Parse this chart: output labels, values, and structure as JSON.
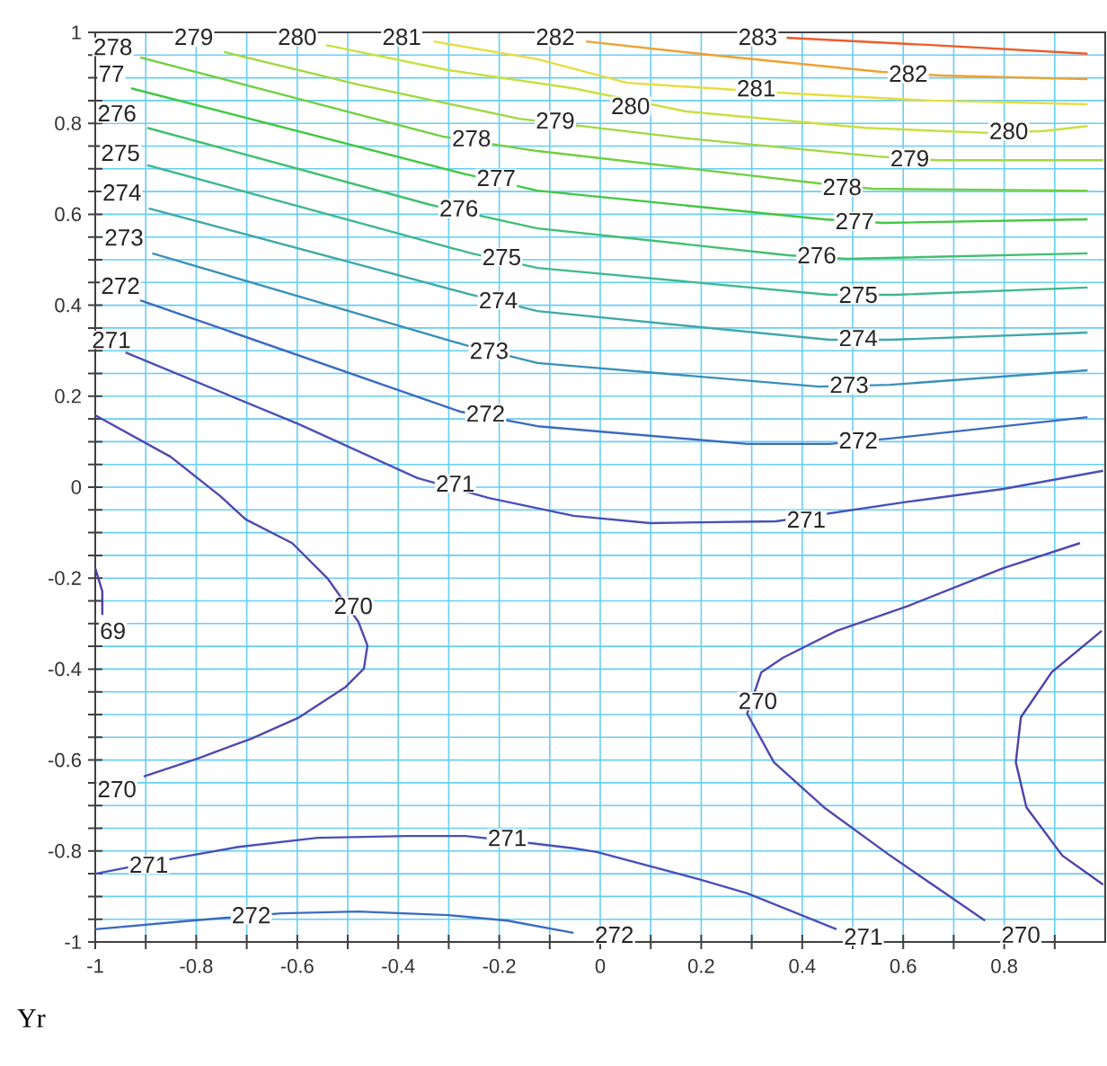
{
  "chart_data": {
    "type": "line",
    "xlabel": "Yr",
    "xlim": [
      -1,
      1
    ],
    "ylim": [
      -1,
      1
    ],
    "xticks": [
      -1,
      {
        "value": -0.9,
        "label": null
      },
      -0.8,
      {
        "value": -0.7,
        "label": null
      },
      -0.6,
      {
        "value": -0.5,
        "label": null
      },
      -0.4,
      {
        "value": -0.3,
        "label": null
      },
      -0.2,
      {
        "value": -0.1,
        "label": null
      },
      0,
      {
        "value": 0.1,
        "label": null
      },
      0.2,
      {
        "value": 0.3,
        "label": null
      },
      0.4,
      {
        "value": 0.5,
        "label": null
      },
      0.6,
      {
        "value": 0.7,
        "label": null
      },
      0.8,
      {
        "value": 0.9,
        "label": null
      }
    ],
    "yticks": [
      -1,
      {
        "value": -0.95,
        "label": null
      },
      {
        "value": -0.9,
        "label": null
      },
      {
        "value": -0.85,
        "label": null
      },
      -0.8,
      {
        "value": -0.75,
        "label": null
      },
      {
        "value": -0.7,
        "label": null
      },
      {
        "value": -0.65,
        "label": null
      },
      -0.6,
      {
        "value": -0.55,
        "label": null
      },
      {
        "value": -0.5,
        "label": null
      },
      {
        "value": -0.45,
        "label": null
      },
      -0.4,
      {
        "value": -0.35,
        "label": null
      },
      {
        "value": -0.3,
        "label": null
      },
      {
        "value": -0.25,
        "label": null
      },
      -0.2,
      {
        "value": -0.15,
        "label": null
      },
      {
        "value": -0.1,
        "label": null
      },
      {
        "value": -0.05,
        "label": null
      },
      0,
      {
        "value": 0.05,
        "label": null
      },
      {
        "value": 0.1,
        "label": null
      },
      {
        "value": 0.15,
        "label": null
      },
      0.2,
      {
        "value": 0.25,
        "label": null
      },
      {
        "value": 0.3,
        "label": null
      },
      {
        "value": 0.35,
        "label": null
      },
      0.4,
      {
        "value": 0.45,
        "label": null
      },
      {
        "value": 0.5,
        "label": null
      },
      {
        "value": 0.55,
        "label": null
      },
      0.6,
      {
        "value": 0.65,
        "label": null
      },
      {
        "value": 0.7,
        "label": null
      },
      {
        "value": 0.75,
        "label": null
      },
      0.8,
      {
        "value": 0.85,
        "label": null
      },
      {
        "value": 0.9,
        "label": null
      },
      {
        "value": 0.95,
        "label": null
      },
      1
    ],
    "grid": true,
    "marker": "none",
    "line_style": "solid",
    "series": [
      {
        "color": "#f05a28",
        "x": [
          0.369,
          0.656,
          0.965
        ],
        "values": [
          0.988,
          0.972,
          0.953
        ]
      },
      {
        "color": "#f0a030",
        "x": [
          -0.028,
          0.23,
          0.557,
          0.674,
          0.965
        ],
        "values": [
          0.98,
          0.949,
          0.913,
          0.905,
          0.897
        ]
      },
      {
        "color": "#e8dc40",
        "x": [
          -0.33,
          -0.124,
          0.053,
          0.372,
          0.656,
          0.965
        ],
        "values": [
          0.98,
          0.941,
          0.889,
          0.866,
          0.85,
          0.842
        ]
      },
      {
        "color": "#c8e040",
        "x": [
          -0.543,
          -0.301,
          -0.053,
          0.17,
          0.525,
          0.762,
          0.879,
          0.965
        ],
        "values": [
          0.972,
          0.917,
          0.877,
          0.826,
          0.79,
          0.779,
          0.783,
          0.794
        ]
      },
      {
        "color": "#a0d840",
        "x": [
          -0.745,
          -0.479,
          -0.16,
          0.17,
          0.55,
          0.667,
          0.996
        ],
        "values": [
          0.957,
          0.885,
          0.81,
          0.767,
          0.727,
          0.719,
          0.719
        ]
      },
      {
        "color": "#70d040",
        "x": [
          -0.911,
          -0.312,
          -0.124,
          0.433,
          0.539,
          0.965
        ],
        "values": [
          0.945,
          0.771,
          0.739,
          0.668,
          0.656,
          0.652
        ]
      },
      {
        "color": "#40c840",
        "x": [
          -0.929,
          -0.266,
          -0.124,
          0.443,
          0.56,
          0.965
        ],
        "values": [
          0.877,
          0.688,
          0.652,
          0.589,
          0.581,
          0.589
        ]
      },
      {
        "color": "#40c070",
        "x": [
          -0.897,
          -0.337,
          -0.124,
          0.372,
          0.489,
          0.965
        ],
        "values": [
          0.79,
          0.621,
          0.569,
          0.51,
          0.502,
          0.514
        ]
      },
      {
        "color": "#40b890",
        "x": [
          -0.897,
          -0.255,
          -0.124,
          0.454,
          0.585,
          0.965
        ],
        "values": [
          0.708,
          0.514,
          0.482,
          0.423,
          0.423,
          0.439
        ]
      },
      {
        "color": "#40a8a8",
        "x": [
          -0.894,
          -0.255,
          -0.124,
          0.454,
          0.574,
          0.965
        ],
        "values": [
          0.613,
          0.423,
          0.387,
          0.324,
          0.324,
          0.34
        ]
      },
      {
        "color": "#3a90b8",
        "x": [
          -0.887,
          -0.266,
          -0.124,
          0.433,
          0.574,
          0.965
        ],
        "values": [
          0.514,
          0.312,
          0.273,
          0.221,
          0.225,
          0.257
        ]
      },
      {
        "color": "#3a6cc0",
        "x": [
          -0.911,
          -0.277,
          -0.124,
          0.291,
          0.454,
          0.574,
          0.965
        ],
        "values": [
          0.411,
          0.166,
          0.134,
          0.095,
          0.095,
          0.107,
          0.154
        ]
      },
      {
        "color": "#4850b8",
        "x": [
          -0.94,
          -0.596,
          -0.362,
          -0.22,
          -0.053,
          0.099,
          0.348,
          0.61,
          0.798,
          0.996
        ],
        "values": [
          0.296,
          0.138,
          0.02,
          -0.024,
          -0.063,
          -0.079,
          -0.075,
          -0.032,
          -0.004,
          0.036
        ]
      },
      {
        "color": "#5048b0",
        "x": [
          -1.0,
          -0.851,
          -0.752,
          -0.702,
          -0.61,
          -0.539,
          -0.479,
          -0.461,
          -0.468,
          -0.504,
          -0.596,
          -0.691,
          -0.798,
          -0.904
        ],
        "values": [
          0.158,
          0.067,
          -0.02,
          -0.071,
          -0.123,
          -0.202,
          -0.296,
          -0.348,
          -0.399,
          -0.439,
          -0.506,
          -0.553,
          -0.597,
          -0.636
        ]
      },
      {
        "color": "#5040a8",
        "x": [
          -1.0,
          -0.986,
          -0.986
        ],
        "values": [
          -0.178,
          -0.229,
          -0.281
        ]
      },
      {
        "color": "#5048b0",
        "x": [
          0.95,
          0.798,
          0.61,
          0.468,
          0.362,
          0.319,
          0.291,
          0.344,
          0.443,
          0.574,
          0.762
        ],
        "values": [
          -0.123,
          -0.178,
          -0.261,
          -0.316,
          -0.375,
          -0.407,
          -0.498,
          -0.605,
          -0.704,
          -0.81,
          -0.953
        ]
      },
      {
        "color": "#5040a8",
        "x": [
          0.993,
          0.894,
          0.833,
          0.823,
          0.844,
          0.915,
          0.996
        ],
        "values": [
          -0.316,
          -0.407,
          -0.506,
          -0.605,
          -0.704,
          -0.81,
          -0.874
        ]
      },
      {
        "color": "#4850b8",
        "x": [
          -1.0,
          -0.833,
          -0.716,
          -0.56,
          -0.383,
          -0.266,
          -0.135,
          -0.053,
          -0.007,
          0.195,
          0.291,
          0.468
        ],
        "values": [
          -0.85,
          -0.814,
          -0.791,
          -0.771,
          -0.767,
          -0.767,
          -0.783,
          -0.794,
          -0.802,
          -0.862,
          -0.893,
          -0.972
        ]
      },
      {
        "color": "#3a6cc0",
        "x": [
          -1.0,
          -0.809,
          -0.631,
          -0.479,
          -0.301,
          -0.184,
          -0.053
        ],
        "values": [
          -0.972,
          -0.953,
          -0.937,
          -0.933,
          -0.941,
          -0.953,
          -0.98
        ]
      }
    ],
    "annotations": [
      {
        "text": "279",
        "x": -0.805,
        "y": 0.99
      },
      {
        "text": "280",
        "x": -0.6,
        "y": 0.99
      },
      {
        "text": "281",
        "x": -0.393,
        "y": 0.99
      },
      {
        "text": "282",
        "x": -0.089,
        "y": 0.99
      },
      {
        "text": "283",
        "x": 0.312,
        "y": 0.99
      },
      {
        "text": "278",
        "x": -0.965,
        "y": 0.968
      },
      {
        "text": "77",
        "x": -0.968,
        "y": 0.909
      },
      {
        "text": "276",
        "x": -0.957,
        "y": 0.822
      },
      {
        "text": "275",
        "x": -0.95,
        "y": 0.735
      },
      {
        "text": "274",
        "x": -0.947,
        "y": 0.648
      },
      {
        "text": "273",
        "x": -0.943,
        "y": 0.549
      },
      {
        "text": "272",
        "x": -0.95,
        "y": 0.443
      },
      {
        "text": "271",
        "x": -0.968,
        "y": 0.324
      },
      {
        "text": "278",
        "x": -0.255,
        "y": 0.767
      },
      {
        "text": "277",
        "x": -0.206,
        "y": 0.68
      },
      {
        "text": "276",
        "x": -0.28,
        "y": 0.613
      },
      {
        "text": "275",
        "x": -0.195,
        "y": 0.506
      },
      {
        "text": "274",
        "x": -0.202,
        "y": 0.411
      },
      {
        "text": "273",
        "x": -0.22,
        "y": 0.3
      },
      {
        "text": "272",
        "x": -0.227,
        "y": 0.162
      },
      {
        "text": "271",
        "x": -0.287,
        "y": 0.008
      },
      {
        "text": "279",
        "x": -0.089,
        "y": 0.806
      },
      {
        "text": "280",
        "x": 0.06,
        "y": 0.838
      },
      {
        "text": "281",
        "x": 0.309,
        "y": 0.877
      },
      {
        "text": "282",
        "x": 0.61,
        "y": 0.909
      },
      {
        "text": "280",
        "x": 0.809,
        "y": 0.783
      },
      {
        "text": "279",
        "x": 0.613,
        "y": 0.723
      },
      {
        "text": "278",
        "x": 0.479,
        "y": 0.66
      },
      {
        "text": "277",
        "x": 0.504,
        "y": 0.585
      },
      {
        "text": "276",
        "x": 0.429,
        "y": 0.51
      },
      {
        "text": "275",
        "x": 0.511,
        "y": 0.423
      },
      {
        "text": "274",
        "x": 0.511,
        "y": 0.328
      },
      {
        "text": "273",
        "x": 0.493,
        "y": 0.225
      },
      {
        "text": "272",
        "x": 0.511,
        "y": 0.103
      },
      {
        "text": "271",
        "x": 0.408,
        "y": -0.071
      },
      {
        "text": "270",
        "x": -0.489,
        "y": -0.261
      },
      {
        "text": "69",
        "x": -0.965,
        "y": -0.316
      },
      {
        "text": "270",
        "x": -0.957,
        "y": -0.664
      },
      {
        "text": "270",
        "x": 0.312,
        "y": -0.47
      },
      {
        "text": "271",
        "x": -0.894,
        "y": -0.83
      },
      {
        "text": "271",
        "x": -0.184,
        "y": -0.771
      },
      {
        "text": "272",
        "x": -0.691,
        "y": -0.941
      },
      {
        "text": "272",
        "x": 0.028,
        "y": -0.984
      },
      {
        "text": "271",
        "x": 0.521,
        "y": -0.988
      },
      {
        "text": "270",
        "x": 0.833,
        "y": -0.984
      }
    ]
  }
}
